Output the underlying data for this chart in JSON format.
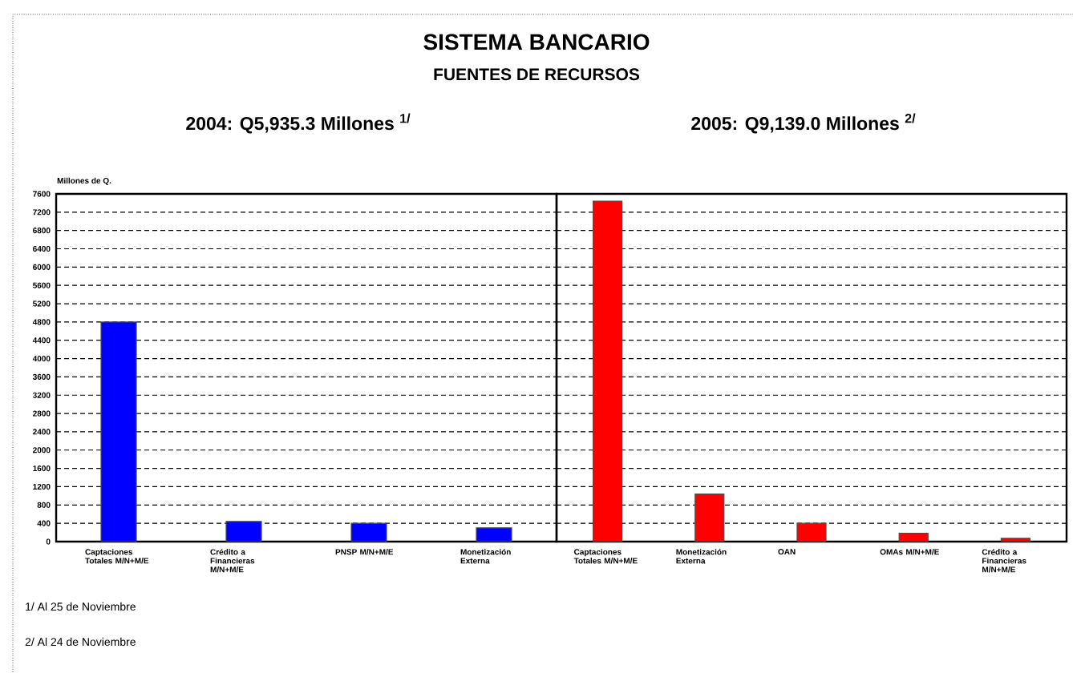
{
  "chart_data": [
    {
      "type": "bar",
      "title": "SISTEMA BANCARIO",
      "subtitle": "2004: Q5,935.3 Millones $^{1/}$",
      "ylabel": "Millones de Q.",
      "annotations": [
        "FUENTES DE RECURSOS",
        "1/ Al 25 de Noviembre",
        "2/ Al 24 de Noviembre"
      ],
      "categories": [
        "Captaciones Totales M/N+M/E",
        "Crédito a Financieras M/N+M/E",
        "PNSP M/N+M/E",
        "Monetización Externa"
      ],
      "series": [
        {
          "color": "#0000ff",
          "values": [
            4800,
            440,
            400,
            300
          ]
        }
      ],
      "ylim": [
        0,
        7600
      ],
      "yticks": [
        0,
        400,
        800,
        1200,
        1600,
        2000,
        2400,
        2800,
        3200,
        3600,
        4000,
        4400,
        4800,
        5200,
        5600,
        6000,
        6400,
        6800,
        7200,
        7600
      ],
      "grid": "y"
    },
    {
      "type": "bar",
      "subtitle": "2005: Q9,139.0 Millones $^{2/}$",
      "categories": [
        "Captaciones Totales M/N+M/E",
        "Monetización Externa",
        "OAN",
        "OMAs M/N+M/E",
        "Crédito a Financieras M/N+M/E"
      ],
      "series": [
        {
          "color": "#ff0000",
          "values": [
            7440,
            1040,
            400,
            180,
            70
          ]
        }
      ],
      "ylim": [
        0,
        7600
      ],
      "yticks": [
        0,
        400,
        800,
        1200,
        1600,
        2000,
        2400,
        2800,
        3200,
        3600,
        4000,
        4400,
        4800,
        5200,
        5600,
        6000,
        6400,
        6800,
        7200,
        7600
      ],
      "grid": "y",
      "tick_labels": "x"
    }
  ]
}
